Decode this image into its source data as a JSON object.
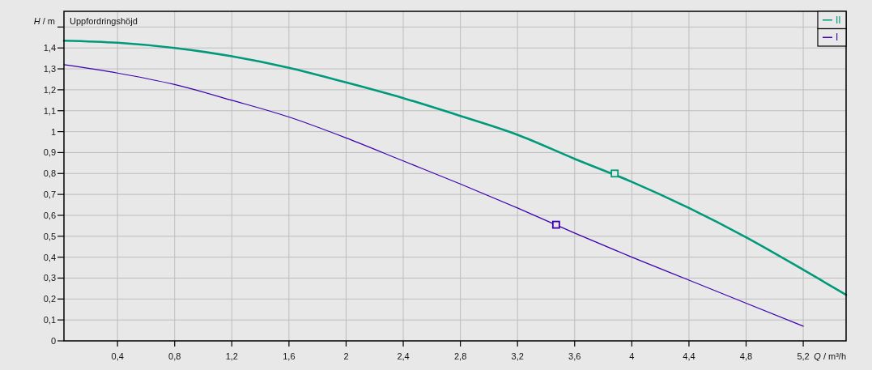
{
  "chart_data": {
    "type": "line",
    "title": "Uppfordringshöjd",
    "xlabel": "Q / m³/h",
    "ylabel": "H / m",
    "xlim": [
      0.025,
      5.5
    ],
    "ylim": [
      0,
      1.575
    ],
    "xticks": [
      {
        "value": 0.4,
        "label": "0,4"
      },
      {
        "value": 0.8,
        "label": "0,8"
      },
      {
        "value": 1.2,
        "label": "1,2"
      },
      {
        "value": 1.6,
        "label": "1,6"
      },
      2,
      {
        "value": 2.4,
        "label": "2,4"
      },
      {
        "value": 2.8,
        "label": "2,8"
      },
      {
        "value": 3.2,
        "label": "3,2"
      },
      {
        "value": 3.6,
        "label": "3,6"
      },
      4,
      {
        "value": 4.4,
        "label": "4,4"
      },
      {
        "value": 4.8,
        "label": "4,8"
      },
      {
        "value": 5.2,
        "label": "5,2"
      }
    ],
    "yticks": [
      0,
      {
        "value": 0.1,
        "label": "0,1"
      },
      {
        "value": 0.2,
        "label": "0,2"
      },
      {
        "value": 0.3,
        "label": "0,3"
      },
      {
        "value": 0.4,
        "label": "0,4"
      },
      {
        "value": 0.5,
        "label": "0,5"
      },
      {
        "value": 0.6,
        "label": "0,6"
      },
      {
        "value": 0.7,
        "label": "0,7"
      },
      {
        "value": 0.8,
        "label": "0,8"
      },
      {
        "value": 0.9,
        "label": "0,9"
      },
      1,
      {
        "value": 1.1,
        "label": "1,1"
      },
      {
        "value": 1.2,
        "label": "1,2"
      },
      {
        "value": 1.3,
        "label": "1,3"
      },
      {
        "value": 1.4,
        "label": "1,4"
      },
      {
        "value": 1.5,
        "label": null
      }
    ],
    "grid": true,
    "legend": "top right",
    "series": [
      {
        "name": "II",
        "color": "#00997a",
        "x": [
          0.025,
          0.4,
          0.8,
          1.2,
          1.6,
          2.0,
          2.4,
          2.8,
          3.2,
          3.6,
          4.0,
          4.4,
          4.8,
          5.2,
          5.5
        ],
        "values": [
          1.435,
          1.425,
          1.4,
          1.36,
          1.305,
          1.235,
          1.16,
          1.075,
          0.985,
          0.87,
          0.76,
          0.635,
          0.495,
          0.34,
          0.22
        ]
      },
      {
        "name": "I",
        "color": "#3c00b0",
        "x": [
          0.025,
          0.4,
          0.8,
          1.2,
          1.6,
          2.0,
          2.4,
          2.8,
          3.2,
          3.6,
          4.0,
          4.4,
          4.8,
          5.2
        ],
        "values": [
          1.32,
          1.28,
          1.225,
          1.15,
          1.07,
          0.97,
          0.86,
          0.75,
          0.635,
          0.515,
          0.4,
          0.29,
          0.18,
          0.07
        ]
      },
      {
        "type": "scatter",
        "color": "#00997a",
        "marker": "square",
        "x": [
          3.88
        ],
        "values": [
          0.8
        ]
      },
      {
        "type": "scatter",
        "color": "#3c00b0",
        "marker": "square",
        "x": [
          3.47
        ],
        "values": [
          0.555
        ]
      }
    ]
  }
}
